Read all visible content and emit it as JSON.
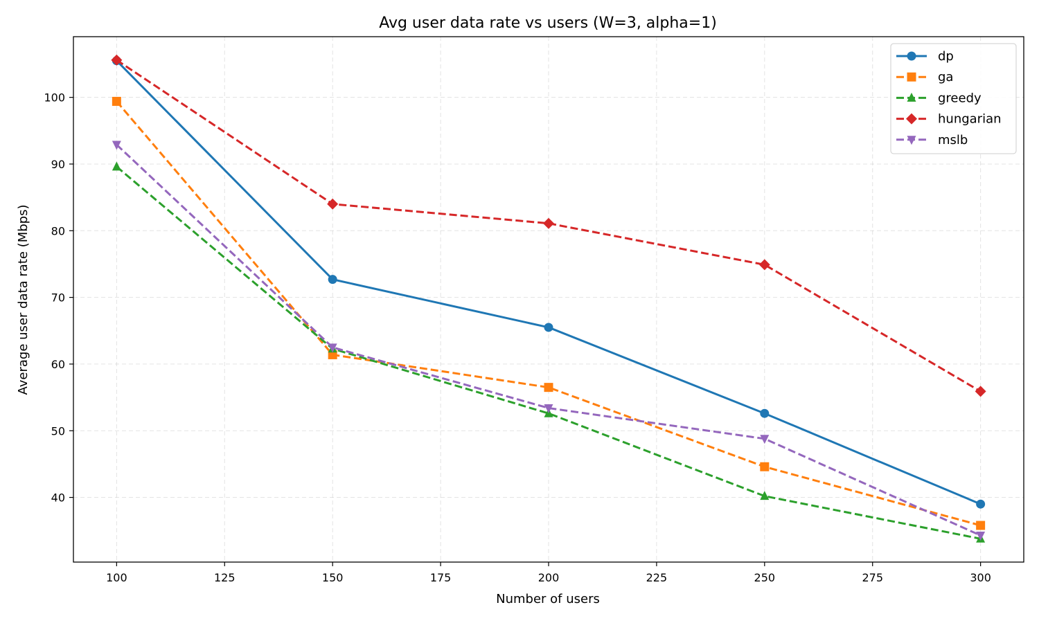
{
  "chart_data": {
    "type": "line",
    "title": "Avg user data rate vs users (W=3, alpha=1)",
    "xlabel": "Number of users",
    "ylabel": "Average user data rate (Mbps)",
    "x": [
      100,
      150,
      200,
      250,
      300
    ],
    "xlim": [
      90,
      310
    ],
    "ylim": [
      30.3,
      109.1
    ],
    "xticks": [
      100,
      125,
      150,
      175,
      200,
      225,
      250,
      275,
      300
    ],
    "yticks": [
      40,
      50,
      60,
      70,
      80,
      90,
      100
    ],
    "grid": true,
    "legend_position": "top-right",
    "series": [
      {
        "name": "dp",
        "values": [
          105.5,
          72.7,
          65.5,
          52.6,
          39.0
        ],
        "color": "#1f77b4",
        "marker": "circle",
        "dashed": false
      },
      {
        "name": "ga",
        "values": [
          99.4,
          61.4,
          56.5,
          44.6,
          35.8
        ],
        "color": "#ff7f0e",
        "marker": "square",
        "dashed": true
      },
      {
        "name": "greedy",
        "values": [
          89.6,
          62.3,
          52.6,
          40.2,
          33.8
        ],
        "color": "#2ca02c",
        "marker": "triangle-up",
        "dashed": true
      },
      {
        "name": "hungarian",
        "values": [
          105.6,
          84.0,
          81.1,
          74.9,
          55.9
        ],
        "color": "#d62728",
        "marker": "diamond",
        "dashed": true
      },
      {
        "name": "mslb",
        "values": [
          92.9,
          62.5,
          53.4,
          48.8,
          34.3
        ],
        "color": "#9467bd",
        "marker": "triangle-down",
        "dashed": true
      }
    ]
  }
}
